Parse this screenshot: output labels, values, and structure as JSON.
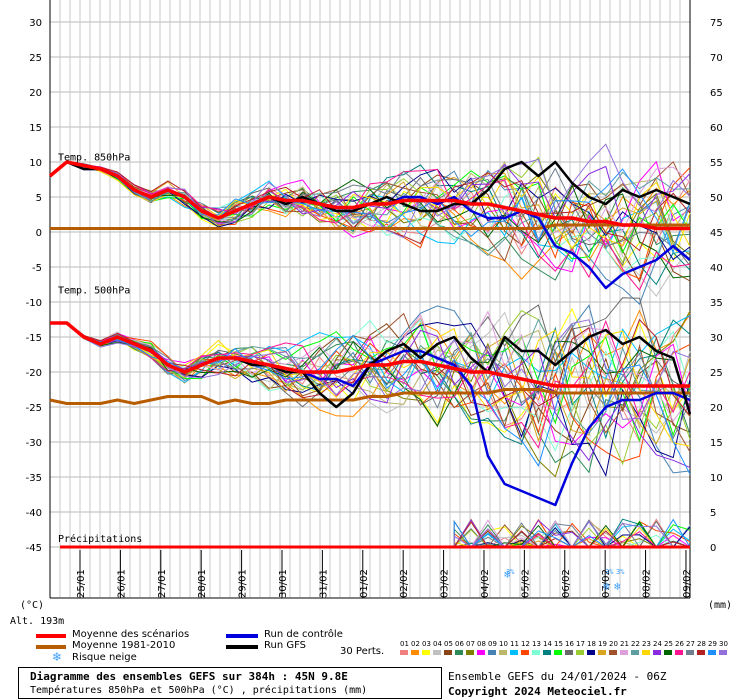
{
  "chart_data": {
    "type": "line",
    "title": "Diagramme des ensembles GEFS sur 384h : 45N 9.8E",
    "subtitle": "Températures 850hPa et 500hPa (°C) , précipitations (mm)",
    "left_axis": {
      "unit": "(°C)",
      "ticks": [
        30,
        25,
        20,
        15,
        10,
        5,
        0,
        -5,
        -10,
        -15,
        -20,
        -25,
        -30,
        -35,
        -40,
        -45
      ],
      "range": [
        -45,
        30
      ]
    },
    "right_axis": {
      "unit": "(mm)",
      "ticks": [
        75,
        70,
        65,
        60,
        55,
        50,
        45,
        40,
        35,
        30,
        25,
        20,
        15,
        10,
        5,
        0
      ]
    },
    "x_labels": [
      "25/01",
      "26/01",
      "27/01",
      "28/01",
      "29/01",
      "30/01",
      "31/01",
      "01/02",
      "02/02",
      "03/02",
      "04/02",
      "05/02",
      "06/02",
      "07/02",
      "08/02",
      "09/02"
    ],
    "altitude": "Alt. 193m",
    "sections": [
      "Temp. 850hPa",
      "Temp. 500hPa",
      "Précipitations"
    ],
    "series": [
      {
        "name": "Moyenne des scénarios",
        "color": "#ff0000",
        "t850": [
          8,
          10,
          9.5,
          9,
          8,
          6,
          5,
          6,
          5,
          3,
          2,
          3,
          4,
          5,
          4.5,
          4.5,
          4,
          3.5,
          3.5,
          4,
          4,
          4.5,
          4.5,
          4.5,
          4.5,
          4,
          4,
          3.5,
          3,
          2.5,
          2,
          2,
          1.5,
          1.5,
          1,
          1,
          0.5,
          0.5,
          0.5
        ],
        "t500": [
          -13,
          -13,
          -15,
          -16,
          -15,
          -16,
          -17,
          -19,
          -20,
          -19,
          -18,
          -18,
          -18.5,
          -19,
          -19.5,
          -20,
          -20,
          -20,
          -19.5,
          -19,
          -19,
          -18.5,
          -18.5,
          -19,
          -19.5,
          -20,
          -20,
          -20.5,
          -21,
          -21.5,
          -22,
          -22,
          -22,
          -22,
          -22,
          -22,
          -22,
          -22,
          -22
        ],
        "precip": [
          0,
          0,
          0,
          0,
          0,
          0,
          0,
          0,
          0,
          0,
          0,
          0,
          0,
          0,
          0,
          0,
          0,
          0,
          0,
          0,
          0,
          0,
          0,
          0,
          0,
          0,
          0,
          0,
          0,
          0,
          0,
          0,
          0,
          0,
          0,
          0,
          0,
          0,
          0
        ]
      },
      {
        "name": "Moyenne 1981-2010",
        "color": "#b85c00",
        "t850": [
          0.5,
          0.5,
          0.5,
          0.5,
          0.5,
          0.5,
          0.5,
          0.5,
          0.5,
          0.5,
          0.5,
          0.5,
          0.5,
          0.5,
          0.5,
          0.5,
          0.5,
          0.5,
          0.5,
          0.5,
          0.5,
          0.5,
          0.5,
          0.5,
          0.5,
          0.5,
          0.5,
          0.5,
          0.5,
          0.5,
          1,
          1,
          1,
          1,
          1,
          1,
          1,
          1,
          1
        ],
        "t500": [
          -24,
          -24.5,
          -24.5,
          -24.5,
          -24,
          -24.5,
          -24,
          -23.5,
          -23.5,
          -23.5,
          -24.5,
          -24,
          -24.5,
          -24.5,
          -24,
          -24,
          -24,
          -24,
          -24,
          -23.5,
          -23.5,
          -23,
          -23,
          -23,
          -23,
          -23,
          -23,
          -22.5,
          -22.5,
          -22.5,
          -23,
          -23,
          -23,
          -23,
          -23,
          -23,
          -23,
          -23,
          -23
        ]
      },
      {
        "name": "Run de contrôle",
        "color": "#0000dd",
        "t850": [
          8,
          10,
          9,
          9,
          8,
          6,
          5,
          6,
          5,
          3,
          2,
          3,
          4,
          5,
          4,
          5,
          4,
          3,
          3,
          4,
          4,
          5,
          5,
          4,
          5,
          3,
          2,
          2,
          3,
          2,
          -2,
          -3,
          -5,
          -8,
          -6,
          -5,
          -4,
          -2,
          -4
        ],
        "t500": [
          -13,
          -13,
          -15,
          -16,
          -15,
          -16,
          -17,
          -19,
          -20,
          -19,
          -18,
          -18,
          -19,
          -19,
          -20,
          -20,
          -21,
          -21,
          -22,
          -19,
          -18,
          -17,
          -17,
          -18,
          -19,
          -22,
          -32,
          -36,
          -37,
          -38,
          -39,
          -33,
          -28,
          -25,
          -24,
          -24,
          -23,
          -23,
          -24
        ]
      },
      {
        "name": "Run GFS",
        "color": "#000000",
        "t850": [
          8,
          10,
          9,
          9,
          8,
          6,
          5,
          6,
          5,
          3,
          2,
          3,
          4,
          5,
          4,
          5,
          4,
          3,
          3,
          4,
          5,
          4,
          3,
          3,
          4,
          4,
          6,
          9,
          10,
          8,
          10,
          7,
          5,
          4,
          6,
          5,
          6,
          5,
          4
        ],
        "t500": [
          -13,
          -13,
          -15,
          -16,
          -15,
          -16,
          -17,
          -19,
          -20,
          -19,
          -18,
          -18,
          -19,
          -19,
          -20,
          -20,
          -23,
          -25,
          -23,
          -19,
          -17,
          -16,
          -18,
          -16,
          -15,
          -18,
          -20,
          -15,
          -17,
          -17,
          -19,
          -17,
          -15,
          -14,
          -16,
          -15,
          -17,
          -18,
          -26
        ]
      }
    ],
    "snow_risk_days": [
      "04/02",
      "07/02",
      "07/02"
    ],
    "snow_label": "3%",
    "ensemble_members": 30,
    "member_colors": [
      "#f08080",
      "#ff8c00",
      "#ffff00",
      "#c0c0c0",
      "#8b4513",
      "#2e8b57",
      "#808000",
      "#ff00ff",
      "#4682b4",
      "#bdb76b",
      "#00bfff",
      "#ff4500",
      "#7fffd4",
      "#008080",
      "#00ff00",
      "#696969",
      "#9acd32",
      "#00008b",
      "#daa520",
      "#a0522d",
      "#dda0dd",
      "#5f9ea0",
      "#ffd700",
      "#8a2be2",
      "#006400",
      "#ff1493",
      "#708090",
      "#b22222",
      "#1e90ff",
      "#9370db"
    ]
  },
  "legend": {
    "mean": "Moyenne des scénarios",
    "clim": "Moyenne 1981-2010",
    "snow": "Risque neige",
    "control": "Run de contrôle",
    "gfs": "Run GFS",
    "perts": "30 Perts.",
    "pert_numbers": [
      "01",
      "02",
      "03",
      "04",
      "05",
      "06",
      "07",
      "08",
      "09",
      "10",
      "11",
      "12",
      "13",
      "14",
      "15",
      "16",
      "17",
      "18",
      "19",
      "20",
      "21",
      "22",
      "23",
      "24",
      "25",
      "26",
      "27",
      "28",
      "29",
      "30"
    ]
  },
  "footer": {
    "title": "Diagramme des ensembles GEFS sur 384h : 45N 9.8E",
    "subtitle": "Températures 850hPa et 500hPa (°C) , précipitations (mm)",
    "run": "Ensemble GEFS du 24/01/2024 - 06Z",
    "copyright": "Copyright 2024 Meteociel.fr"
  },
  "colors": {
    "grid": "#b0b0b0",
    "mean": "#ff0000",
    "clim": "#b85c00",
    "control": "#0000dd",
    "gfs": "#000000",
    "snow": "#3ea0ff"
  }
}
